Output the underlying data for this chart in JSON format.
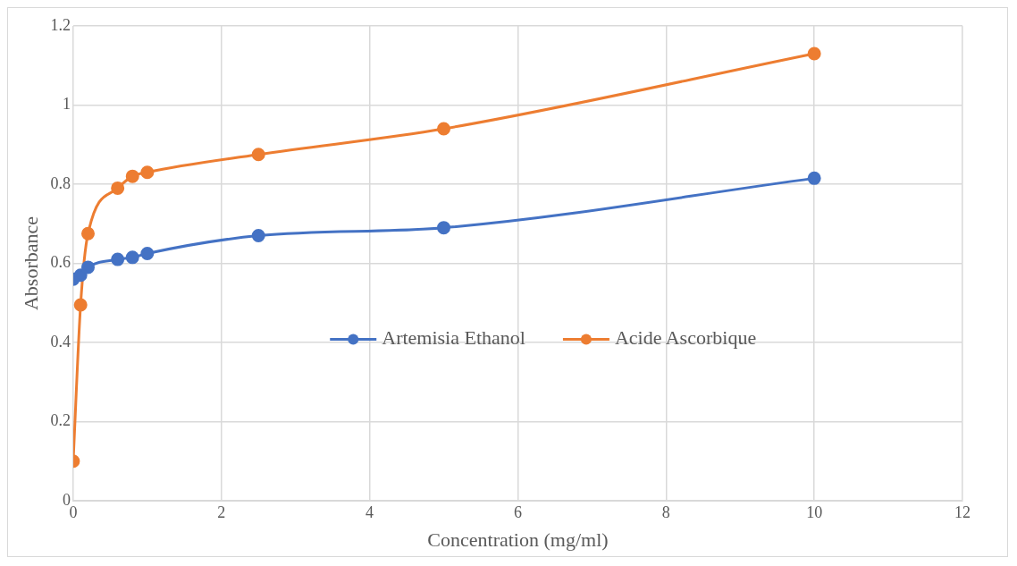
{
  "chart_data": {
    "type": "line",
    "xlabel": "Concentration (mg/ml)",
    "ylabel": "Absorbance",
    "x": [
      0,
      0.1,
      0.2,
      0.6,
      0.8,
      1,
      2.5,
      5,
      10
    ],
    "series": [
      {
        "name": "Artemisia Ethanol",
        "color": "#4472c4",
        "values": [
          0.56,
          0.57,
          0.59,
          0.61,
          0.615,
          0.625,
          0.67,
          0.69,
          0.815
        ]
      },
      {
        "name": "Acide Ascorbique",
        "color": "#ed7d31",
        "values": [
          0.1,
          0.495,
          0.675,
          0.79,
          0.82,
          0.83,
          0.875,
          0.94,
          1.13
        ]
      }
    ],
    "xlim": [
      0,
      12
    ],
    "xticks": [
      0,
      2,
      4,
      6,
      8,
      10,
      12
    ],
    "ylim": [
      0,
      1.2
    ],
    "yticks": [
      0,
      0.2,
      0.4,
      0.6,
      0.8,
      1,
      1.2
    ],
    "grid": true,
    "legend": "center",
    "marker": "circle",
    "line_style": "solid"
  }
}
